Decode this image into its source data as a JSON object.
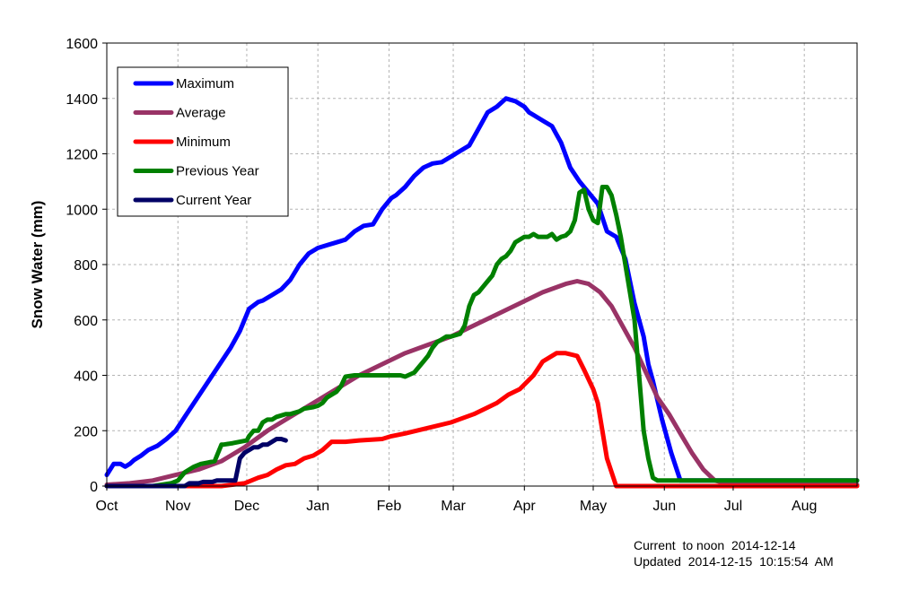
{
  "chart_data": {
    "type": "line",
    "title": "",
    "xlabel": "",
    "ylabel": "Snow Water (mm)",
    "ylim": [
      0,
      1600
    ],
    "yticks": [
      0,
      200,
      400,
      600,
      800,
      1000,
      1200,
      1400,
      1600
    ],
    "x_unit": "days since Oct 1",
    "xlim": [
      0,
      327
    ],
    "month_ticks": [
      {
        "label": "Oct",
        "day": 0
      },
      {
        "label": "Nov",
        "day": 31
      },
      {
        "label": "Dec",
        "day": 61
      },
      {
        "label": "Jan",
        "day": 92
      },
      {
        "label": "Feb",
        "day": 123
      },
      {
        "label": "Mar",
        "day": 151
      },
      {
        "label": "Apr",
        "day": 182
      },
      {
        "label": "May",
        "day": 212
      },
      {
        "label": "Jun",
        "day": 243
      },
      {
        "label": "Jul",
        "day": 273
      },
      {
        "label": "Aug",
        "day": 304
      }
    ],
    "grid": true,
    "legend": "top-left",
    "series": [
      {
        "name": "Maximum",
        "color": "#0000ff",
        "x": [
          0,
          3,
          6,
          8,
          10,
          12,
          15,
          18,
          22,
          26,
          30,
          34,
          38,
          42,
          46,
          50,
          54,
          58,
          62,
          66,
          68,
          72,
          76,
          80,
          84,
          88,
          92,
          96,
          100,
          104,
          108,
          112,
          116,
          120,
          124,
          126,
          130,
          134,
          138,
          142,
          146,
          150,
          154,
          158,
          162,
          166,
          170,
          174,
          178,
          182,
          184,
          186,
          190,
          194,
          196,
          198,
          202,
          206,
          210,
          214,
          218,
          222,
          226,
          230,
          234,
          236,
          238,
          242,
          246,
          250,
          254,
          258,
          262,
          266,
          270,
          273,
          276,
          280,
          284,
          288,
          292,
          296,
          300,
          304,
          308,
          312,
          316,
          320,
          324,
          327
        ],
        "y": [
          40,
          80,
          80,
          70,
          80,
          95,
          110,
          130,
          145,
          170,
          200,
          250,
          300,
          350,
          400,
          450,
          500,
          560,
          640,
          665,
          670,
          690,
          710,
          745,
          800,
          840,
          860,
          870,
          880,
          890,
          920,
          940,
          945,
          1000,
          1040,
          1050,
          1080,
          1120,
          1150,
          1165,
          1170,
          1190,
          1210,
          1230,
          1290,
          1350,
          1370,
          1400,
          1390,
          1370,
          1350,
          1340,
          1320,
          1300,
          1270,
          1240,
          1150,
          1100,
          1060,
          1020,
          920,
          900,
          820,
          660,
          540,
          440,
          380,
          240,
          120,
          20,
          20,
          20,
          20,
          20,
          20,
          20,
          20,
          20,
          20,
          20,
          20,
          20,
          20,
          20,
          20,
          20,
          20,
          20,
          20,
          20
        ]
      },
      {
        "name": "Average",
        "color": "#993366",
        "x": [
          0,
          10,
          20,
          30,
          40,
          50,
          60,
          70,
          80,
          90,
          100,
          110,
          120,
          130,
          140,
          150,
          160,
          170,
          180,
          190,
          200,
          205,
          210,
          215,
          220,
          230,
          240,
          245,
          250,
          255,
          260,
          265,
          270,
          275,
          280,
          290,
          300,
          310,
          320,
          327
        ],
        "y": [
          5,
          10,
          20,
          40,
          60,
          90,
          140,
          200,
          250,
          300,
          350,
          400,
          440,
          480,
          510,
          540,
          580,
          620,
          660,
          700,
          730,
          740,
          730,
          700,
          650,
          500,
          320,
          260,
          190,
          120,
          60,
          20,
          10,
          10,
          10,
          5,
          5,
          5,
          5,
          5
        ]
      },
      {
        "name": "Minimum",
        "color": "#ff0000",
        "x": [
          0,
          10,
          20,
          30,
          40,
          50,
          60,
          63,
          66,
          70,
          74,
          78,
          82,
          86,
          90,
          94,
          98,
          100,
          104,
          110,
          120,
          124,
          130,
          140,
          150,
          160,
          170,
          175,
          180,
          186,
          190,
          196,
          200,
          205,
          208,
          212,
          214,
          216,
          218,
          222,
          224,
          226,
          230,
          240,
          250,
          260,
          270,
          280,
          290,
          300,
          310,
          320,
          327
        ],
        "y": [
          0,
          0,
          0,
          0,
          0,
          0,
          10,
          20,
          30,
          40,
          60,
          75,
          80,
          100,
          110,
          130,
          160,
          160,
          160,
          165,
          170,
          180,
          190,
          210,
          230,
          260,
          300,
          330,
          350,
          400,
          450,
          480,
          480,
          470,
          420,
          350,
          300,
          200,
          100,
          0,
          0,
          0,
          0,
          0,
          0,
          0,
          0,
          0,
          0,
          0,
          0,
          0,
          0
        ]
      },
      {
        "name": "Previous Year",
        "color": "#008000",
        "x": [
          0,
          20,
          28,
          31,
          34,
          36,
          38,
          41,
          44,
          47,
          50,
          51,
          55,
          58,
          61,
          62,
          64,
          66,
          68,
          70,
          72,
          74,
          76,
          78,
          80,
          82,
          84,
          86,
          90,
          92,
          94,
          96,
          98,
          100,
          102,
          104,
          108,
          110,
          112,
          116,
          120,
          122,
          124,
          128,
          130,
          134,
          138,
          140,
          142,
          144,
          146,
          148,
          150,
          152,
          154,
          156,
          158,
          160,
          162,
          164,
          166,
          168,
          170,
          172,
          174,
          176,
          178,
          182,
          184,
          186,
          188,
          190,
          192,
          194,
          196,
          198,
          200,
          202,
          204,
          206,
          208,
          210,
          212,
          214,
          216,
          218,
          220,
          222,
          224,
          226,
          228,
          230,
          232,
          234,
          236,
          238,
          240,
          242,
          244,
          246,
          248,
          250,
          252,
          254,
          256,
          258,
          260,
          262,
          264,
          266,
          270,
          280,
          290,
          300,
          310,
          320,
          327
        ],
        "y": [
          0,
          0,
          10,
          20,
          50,
          60,
          70,
          80,
          85,
          90,
          150,
          150,
          155,
          160,
          165,
          180,
          200,
          200,
          230,
          240,
          240,
          250,
          255,
          260,
          260,
          265,
          270,
          280,
          285,
          290,
          300,
          320,
          330,
          340,
          360,
          395,
          400,
          400,
          400,
          400,
          400,
          400,
          400,
          400,
          395,
          410,
          450,
          470,
          500,
          520,
          530,
          540,
          540,
          545,
          550,
          580,
          650,
          690,
          700,
          720,
          740,
          760,
          800,
          820,
          830,
          850,
          880,
          900,
          900,
          910,
          900,
          900,
          900,
          910,
          890,
          900,
          905,
          920,
          960,
          1060,
          1070,
          1000,
          960,
          950,
          1080,
          1080,
          1050,
          980,
          900,
          800,
          700,
          600,
          400,
          200,
          100,
          30,
          20,
          20,
          20,
          20,
          20,
          20,
          20,
          20,
          20,
          20,
          20,
          20,
          20,
          20,
          20,
          20,
          20,
          20,
          20,
          20,
          20
        ]
      },
      {
        "name": "Current Year",
        "color": "#000066",
        "x": [
          0,
          20,
          28,
          30,
          32,
          34,
          36,
          38,
          40,
          42,
          44,
          46,
          48,
          50,
          52,
          54,
          56,
          58,
          60,
          62,
          64,
          66,
          68,
          70,
          72,
          74,
          76,
          78
        ],
        "y": [
          0,
          0,
          0,
          0,
          0,
          0,
          10,
          10,
          10,
          15,
          15,
          15,
          20,
          20,
          20,
          20,
          20,
          100,
          120,
          130,
          140,
          140,
          150,
          150,
          160,
          170,
          170,
          165
        ]
      }
    ]
  },
  "footer": {
    "current_to": "Current  to noon  2014-12-14",
    "updated": "Updated  2014-12-15  10:15:54  AM"
  }
}
